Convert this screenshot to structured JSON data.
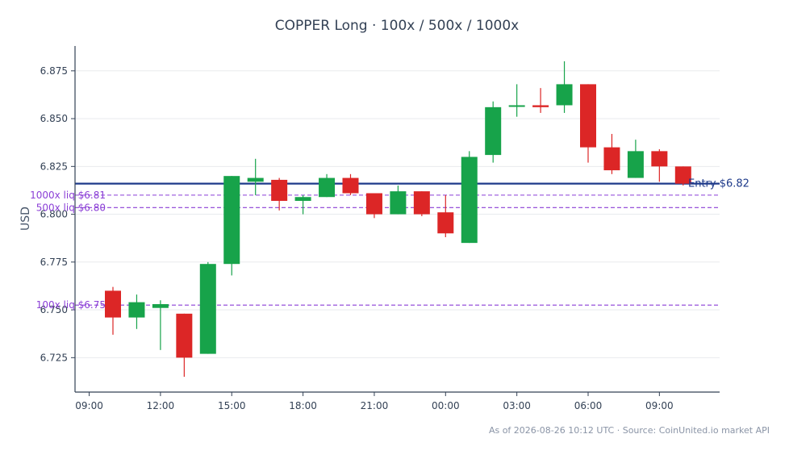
{
  "chart_data": {
    "type": "candlestick",
    "title": "COPPER Long · 100x / 500x / 1000x",
    "ylabel": "USD",
    "xlabel": "",
    "ylim": [
      6.707,
      6.888
    ],
    "y_ticks": [
      "6.725",
      "6.750",
      "6.775",
      "6.800",
      "6.825",
      "6.850",
      "6.875"
    ],
    "x_ticks": [
      "09:00",
      "12:00",
      "15:00",
      "18:00",
      "21:00",
      "00:00",
      "03:00",
      "06:00",
      "09:00"
    ],
    "x_tick_index": [
      -1,
      2,
      5,
      8,
      11,
      14,
      17,
      20,
      23
    ],
    "grid": "horizontal",
    "entry": {
      "value": 6.816,
      "label": "Entry $6.82"
    },
    "liquidations": [
      {
        "value": 6.81,
        "label": "1000x liq $6.81"
      },
      {
        "value": 6.8035,
        "label": "500x liq $6.80"
      },
      {
        "value": 6.7525,
        "label": "100x liq $6.75"
      }
    ],
    "candles": [
      {
        "o": 6.76,
        "h": 6.762,
        "l": 6.737,
        "c": 6.746
      },
      {
        "o": 6.746,
        "h": 6.758,
        "l": 6.74,
        "c": 6.754
      },
      {
        "o": 6.751,
        "h": 6.755,
        "l": 6.729,
        "c": 6.753
      },
      {
        "o": 6.748,
        "h": 6.748,
        "l": 6.715,
        "c": 6.725
      },
      {
        "o": 6.727,
        "h": 6.775,
        "l": 6.727,
        "c": 6.774
      },
      {
        "o": 6.774,
        "h": 6.82,
        "l": 6.768,
        "c": 6.82
      },
      {
        "o": 6.817,
        "h": 6.829,
        "l": 6.81,
        "c": 6.819
      },
      {
        "o": 6.818,
        "h": 6.819,
        "l": 6.802,
        "c": 6.807
      },
      {
        "o": 6.807,
        "h": 6.81,
        "l": 6.8,
        "c": 6.809
      },
      {
        "o": 6.809,
        "h": 6.821,
        "l": 6.809,
        "c": 6.819
      },
      {
        "o": 6.819,
        "h": 6.821,
        "l": 6.81,
        "c": 6.811
      },
      {
        "o": 6.811,
        "h": 6.811,
        "l": 6.798,
        "c": 6.8
      },
      {
        "o": 6.8,
        "h": 6.815,
        "l": 6.8,
        "c": 6.812
      },
      {
        "o": 6.812,
        "h": 6.812,
        "l": 6.799,
        "c": 6.8
      },
      {
        "o": 6.801,
        "h": 6.81,
        "l": 6.788,
        "c": 6.79
      },
      {
        "o": 6.785,
        "h": 6.833,
        "l": 6.785,
        "c": 6.83
      },
      {
        "o": 6.831,
        "h": 6.859,
        "l": 6.827,
        "c": 6.856
      },
      {
        "o": 6.857,
        "h": 6.868,
        "l": 6.851,
        "c": 6.857
      },
      {
        "o": 6.857,
        "h": 6.866,
        "l": 6.853,
        "c": 6.856
      },
      {
        "o": 6.857,
        "h": 6.88,
        "l": 6.853,
        "c": 6.868
      },
      {
        "o": 6.868,
        "h": 6.868,
        "l": 6.827,
        "c": 6.835
      },
      {
        "o": 6.835,
        "h": 6.842,
        "l": 6.821,
        "c": 6.823
      },
      {
        "o": 6.819,
        "h": 6.839,
        "l": 6.819,
        "c": 6.833
      },
      {
        "o": 6.833,
        "h": 6.834,
        "l": 6.817,
        "c": 6.825
      },
      {
        "o": 6.825,
        "h": 6.825,
        "l": 6.815,
        "c": 6.816
      }
    ],
    "colors": {
      "up": "#17a34a",
      "down": "#dc2626",
      "entry": "#1e3a8a",
      "liq": "#8b3fd6",
      "axis": "#334155",
      "grid": "#e5e7eb"
    }
  },
  "footer": {
    "text": "As of 2026-08-26 10:12 UTC · Source: CoinUnited.io market API"
  }
}
